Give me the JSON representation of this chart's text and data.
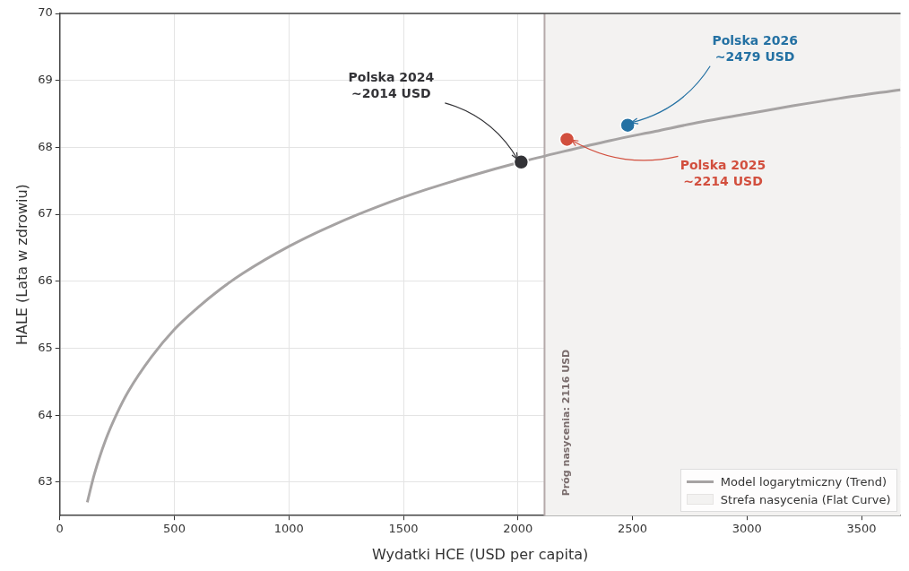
{
  "chart_data": {
    "type": "line",
    "xlabel": "Wydatki HCE (USD per capita)",
    "ylabel": "HALE (Lata w zdrowiu)",
    "xlim": [
      0,
      3670
    ],
    "ylim": [
      62.5,
      70
    ],
    "xticks": [
      0,
      500,
      1000,
      1500,
      2000,
      2500,
      3000,
      3500
    ],
    "yticks": [
      63,
      64,
      65,
      66,
      67,
      68,
      69,
      70
    ],
    "grid": true,
    "legend": "bottom right",
    "marker": "none",
    "line_style": "solid",
    "series": [
      {
        "name": "Model logarytmiczny (Trend)",
        "type": "line",
        "color": "#a6a3a3",
        "x": [
          120,
          150,
          200,
          250,
          300,
          400,
          500,
          600,
          700,
          800,
          1000,
          1200,
          1400,
          1600,
          1800,
          2000,
          2200,
          2400,
          2600,
          2800,
          3000,
          3200,
          3400,
          3670
        ],
        "values": [
          62.7,
          63.11,
          63.63,
          64.03,
          64.36,
          64.87,
          65.28,
          65.6,
          65.88,
          66.12,
          66.52,
          66.85,
          67.13,
          67.37,
          67.58,
          67.77,
          67.94,
          68.1,
          68.24,
          68.38,
          68.5,
          68.62,
          68.73,
          68.86
        ]
      },
      {
        "type": "scatter",
        "marker": "circle",
        "color": "#333337",
        "x": [
          2014
        ],
        "values": [
          67.78
        ]
      },
      {
        "type": "scatter",
        "marker": "circle",
        "color": "#d24f3e",
        "x": [
          2214
        ],
        "values": [
          68.12
        ]
      },
      {
        "type": "scatter",
        "marker": "circle",
        "color": "#2471a3",
        "x": [
          2479
        ],
        "values": [
          68.33
        ]
      }
    ],
    "ref_lines": [
      {
        "axis": "x",
        "value": 2116,
        "label": "Próg nasycenia: 2116 USD",
        "color": "#b5aaaa"
      }
    ],
    "bands": [
      {
        "axis": "x",
        "from": 2116,
        "to": 3670,
        "label": "Strefa nasycenia (Flat Curve)",
        "color": "#f3f2f1"
      }
    ],
    "annotations": [
      {
        "text": "Polska 2024\n~2014 USD",
        "x": 2014,
        "y": 67.78
      },
      {
        "text": "Polska 2025\n~2214 USD",
        "x": 2214,
        "y": 68.12
      },
      {
        "text": "Polska 2026\n~2479 USD",
        "x": 2479,
        "y": 68.33
      }
    ]
  }
}
